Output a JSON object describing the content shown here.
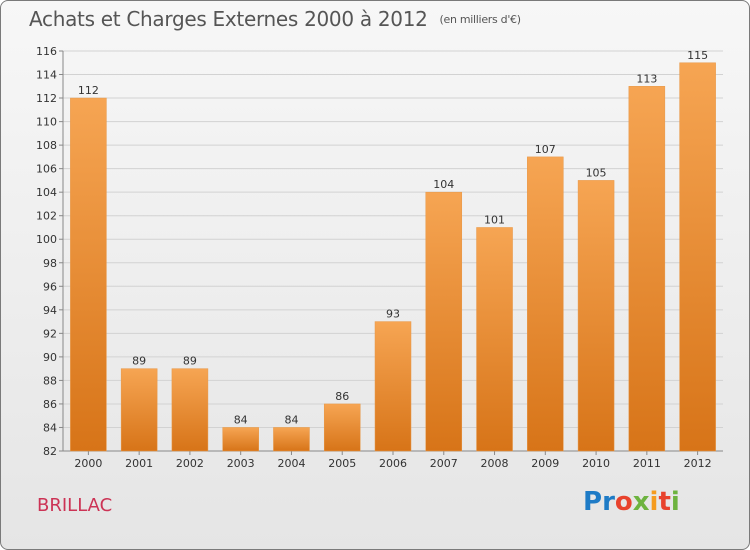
{
  "title": "Achats et Charges Externes 2000 à 2012",
  "subtitle": "(en milliers d'€)",
  "commune": "BRILLAC",
  "logo": {
    "text": "Proxiti",
    "colors": [
      "#1e7bc6",
      "#1e7bc6",
      "#e8432d",
      "#6db33f",
      "#f59b1e",
      "#e8432d",
      "#6db33f"
    ]
  },
  "colors": {
    "bar_top": "#f6a553",
    "bar_bottom": "#d77418",
    "label": "#333333",
    "grid": "#d2d2d2"
  },
  "chart_data": {
    "type": "bar",
    "title": "Achats et Charges Externes 2000 à 2012",
    "categories": [
      "2000",
      "2001",
      "2002",
      "2003",
      "2004",
      "2005",
      "2006",
      "2007",
      "2008",
      "2009",
      "2010",
      "2011",
      "2012"
    ],
    "values": [
      112,
      89,
      89,
      84,
      84,
      86,
      93,
      104,
      101,
      107,
      105,
      113,
      115
    ],
    "data_labels": [
      "112",
      "89",
      "89",
      "84",
      "84",
      "86",
      "93",
      "104",
      "101",
      "107",
      "105",
      "113",
      "115"
    ],
    "ylim": [
      82,
      116
    ],
    "yticks": [
      82,
      84,
      86,
      88,
      90,
      92,
      94,
      96,
      98,
      100,
      102,
      104,
      106,
      108,
      110,
      112,
      114,
      116
    ],
    "grid": true,
    "xlabel": "",
    "ylabel": ""
  }
}
